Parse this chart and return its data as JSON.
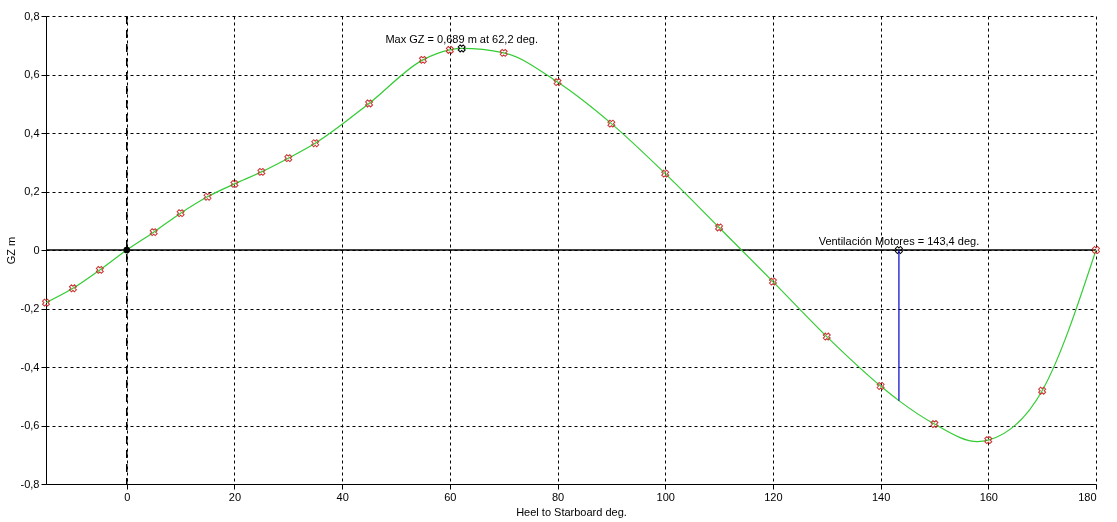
{
  "chart_data": {
    "type": "line",
    "xlabel": "Heel to Starboard   deg.",
    "ylabel": "GZ  m",
    "xlim": [
      -15,
      180
    ],
    "xticks": [
      0,
      20,
      40,
      60,
      80,
      100,
      120,
      140,
      160,
      180
    ],
    "ylim": [
      -0.8,
      0.8
    ],
    "yticks": [
      {
        "value": -0.8,
        "label": "-0,8"
      },
      {
        "value": -0.6,
        "label": "-0,6"
      },
      {
        "value": -0.4,
        "label": "-0,4"
      },
      {
        "value": -0.2,
        "label": "-0,2"
      },
      0,
      {
        "value": 0.2,
        "label": "0,2"
      },
      {
        "value": 0.4,
        "label": "0,4"
      },
      {
        "value": 0.6,
        "label": "0,6"
      },
      {
        "value": 0.8,
        "label": "0,8"
      }
    ],
    "grid": true,
    "series": [
      {
        "color": "#33cc33",
        "x": [
          -15,
          -10,
          -5,
          0,
          5,
          10,
          15,
          20,
          25,
          30,
          35,
          45,
          55,
          60,
          62.2,
          70,
          80,
          90,
          100,
          110,
          120,
          130,
          140,
          143.4,
          150,
          158,
          160,
          170,
          180
        ],
        "values": [
          -0.18,
          -0.131,
          -0.068,
          0,
          0.061,
          0.126,
          0.182,
          0.226,
          0.267,
          0.314,
          0.365,
          0.501,
          0.65,
          0.684,
          0.689,
          0.674,
          0.574,
          0.432,
          0.261,
          0.077,
          -0.108,
          -0.296,
          -0.465,
          -0.515,
          -0.595,
          -0.655,
          -0.65,
          -0.481,
          0
        ]
      },
      {
        "type": "scatter",
        "color": "#cc3333",
        "marker": "cross",
        "x": [
          -15,
          -10,
          -5,
          5,
          10,
          15,
          20,
          25,
          30,
          35,
          45,
          55,
          60,
          70,
          80,
          90,
          100,
          110,
          120,
          130,
          140,
          150,
          160,
          170,
          180
        ],
        "values": [
          -0.18,
          -0.131,
          -0.068,
          0.061,
          0.126,
          0.182,
          0.226,
          0.267,
          0.314,
          0.365,
          0.501,
          0.65,
          0.684,
          0.674,
          0.574,
          0.432,
          0.261,
          0.077,
          -0.108,
          -0.296,
          -0.465,
          -0.595,
          -0.65,
          -0.481,
          0
        ]
      },
      {
        "type": "scatter",
        "color": "#000000",
        "marker": "circle",
        "x": [
          0
        ],
        "values": [
          0
        ]
      },
      {
        "type": "scatter",
        "color": "#000000",
        "marker": "cross",
        "x": [
          62.2,
          143.4
        ],
        "values": [
          0.689,
          0
        ]
      },
      {
        "type": "line",
        "color": "#0000cc",
        "x": [
          143.4,
          143.4
        ],
        "values": [
          0,
          -0.515
        ]
      }
    ],
    "ref_lines": [
      {
        "axis": "x",
        "value": 0,
        "color": "#000000",
        "line_style": "dashed"
      },
      {
        "axis": "y",
        "value": 0,
        "color": "#000000",
        "line_style": "solid"
      }
    ],
    "annotations": [
      {
        "text": "Max GZ = 0,689 m at 62,2 deg.",
        "x": 62.2,
        "y": 0.689
      },
      {
        "text": "Ventilación Motores = 143,4 deg.",
        "x": 143.4,
        "y": 0
      }
    ]
  }
}
